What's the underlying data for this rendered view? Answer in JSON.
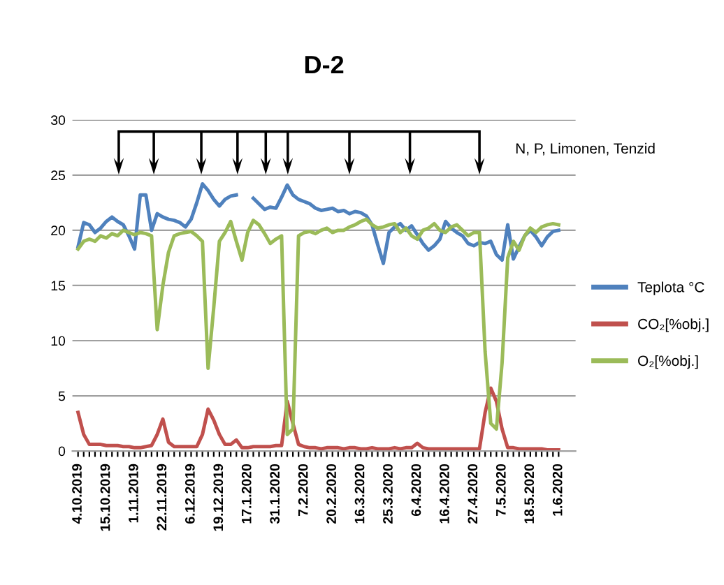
{
  "chart_data": {
    "type": "line",
    "title": "D-2",
    "categories": [
      "4.10.2019",
      null,
      null,
      null,
      null,
      "15.10.2019",
      null,
      null,
      null,
      null,
      "1.11.2019",
      null,
      null,
      null,
      null,
      "22.11.2019",
      null,
      null,
      null,
      null,
      "6.12.2019",
      null,
      null,
      null,
      null,
      "19.12.2019",
      null,
      null,
      null,
      null,
      "17.1.2020",
      null,
      null,
      null,
      null,
      "31.1.2020",
      null,
      null,
      null,
      null,
      "7.2.2020",
      null,
      null,
      null,
      null,
      "20.2.2020",
      null,
      null,
      null,
      null,
      "16.3.2020",
      null,
      null,
      null,
      null,
      "25.3.2020",
      null,
      null,
      null,
      null,
      "6.4.2020",
      null,
      null,
      null,
      null,
      "16.4.2020",
      null,
      null,
      null,
      null,
      "27.4.2020",
      null,
      null,
      null,
      null,
      "7.5.2020",
      null,
      null,
      null,
      null,
      "18.5.2020",
      null,
      null,
      null,
      null,
      "1.6.2020"
    ],
    "series": [
      {
        "name": "Teplota °C",
        "color": "#4f81bd",
        "values": [
          18.5,
          20.7,
          20.5,
          19.8,
          20.2,
          20.8,
          21.2,
          20.8,
          20.5,
          19.5,
          18.3,
          23.2,
          23.2,
          20,
          21.5,
          21.2,
          21,
          20.9,
          20.7,
          20.3,
          21,
          22.5,
          24.2,
          23.6,
          22.8,
          22.2,
          22.8,
          23.1,
          23.2,
          null,
          null,
          22.9,
          22.4,
          21.9,
          22.1,
          22,
          23,
          24.1,
          23.2,
          22.8,
          22.6,
          22.4,
          22,
          21.8,
          21.9,
          22,
          21.7,
          21.8,
          21.5,
          21.7,
          21.6,
          21.3,
          20.5,
          18.7,
          17,
          19.8,
          20.3,
          20.6,
          20,
          20.4,
          19.6,
          18.8,
          18.2,
          18.6,
          19.2,
          20.8,
          20.2,
          19.8,
          19.5,
          18.8,
          18.6,
          18.9,
          18.8,
          19,
          17.8,
          17.3,
          20.5,
          17.4,
          18.5,
          19.5,
          20,
          19.4,
          18.6,
          19.4,
          19.9,
          20
        ]
      },
      {
        "name": "CO₂[%obj.]",
        "color": "#c0504d",
        "values": [
          3.5,
          1.5,
          0.6,
          0.6,
          0.6,
          0.5,
          0.5,
          0.5,
          0.4,
          0.4,
          0.3,
          0.3,
          0.4,
          0.5,
          1.5,
          2.9,
          0.8,
          0.4,
          0.4,
          0.4,
          0.4,
          0.4,
          1.5,
          3.8,
          2.8,
          1.5,
          0.6,
          0.6,
          1,
          0.3,
          0.3,
          0.4,
          0.4,
          0.4,
          0.4,
          0.5,
          0.5,
          4.5,
          2.5,
          0.6,
          0.4,
          0.3,
          0.3,
          0.2,
          0.3,
          0.3,
          0.3,
          0.2,
          0.3,
          0.3,
          0.2,
          0.2,
          0.3,
          0.2,
          0.2,
          0.2,
          0.3,
          0.2,
          0.3,
          0.3,
          0.7,
          0.3,
          0.2,
          0.2,
          0.2,
          0.2,
          0.2,
          0.2,
          0.2,
          0.2,
          0.2,
          0.2,
          3.5,
          5.7,
          4.5,
          2,
          0.3,
          0.3,
          0.2,
          0.2,
          0.2,
          0.2,
          0.2,
          0.1,
          0.1,
          0.1
        ]
      },
      {
        "name": "O₂[%obj.]",
        "color": "#9bbb59",
        "values": [
          18.3,
          19,
          19.2,
          19,
          19.5,
          19.3,
          19.7,
          19.5,
          20,
          19.8,
          19.6,
          19.8,
          19.7,
          19.5,
          11,
          15,
          18,
          19.5,
          19.7,
          19.8,
          19.9,
          19.5,
          19,
          7.5,
          13,
          19,
          19.8,
          20.8,
          19,
          17.3,
          19.8,
          20.9,
          20.5,
          19.7,
          18.8,
          19.2,
          19.5,
          1.5,
          2,
          19.5,
          19.8,
          19.9,
          19.7,
          20,
          20.2,
          19.8,
          20,
          20,
          20.3,
          20.5,
          20.8,
          21,
          20.5,
          20.2,
          20.3,
          20.5,
          20.6,
          19.8,
          20.2,
          19.5,
          19.2,
          20,
          20.2,
          20.6,
          20,
          19.8,
          20.3,
          20.5,
          20,
          19.5,
          19.8,
          19.8,
          9,
          2.5,
          2,
          8,
          17.5,
          19,
          18.2,
          19.5,
          20.2,
          19.8,
          20.3,
          20.5,
          20.6,
          20.5
        ]
      }
    ],
    "ylim": [
      0,
      30
    ],
    "yticks": [
      0,
      5,
      10,
      15,
      20,
      25,
      30
    ],
    "grid": "y",
    "legend": "right",
    "marker": "none",
    "line_style": "solid",
    "annotations": [
      "N, P, Limonen, Tenzid"
    ]
  }
}
